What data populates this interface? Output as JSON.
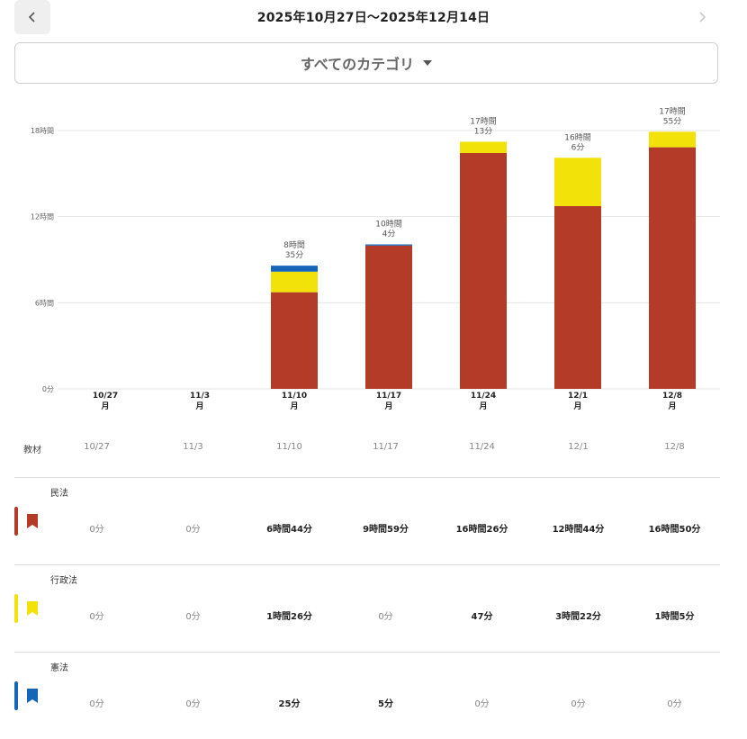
{
  "header": {
    "date_range": "2025年10月27日〜2025年12月14日",
    "prev_icon": "chevron-left-icon",
    "next_icon": "chevron-right-icon"
  },
  "category_select": {
    "label": "すべてのカテゴリ",
    "icon": "caret-down-icon"
  },
  "chart_data": {
    "type": "bar",
    "stacked": true,
    "categories": [
      "10/27",
      "11/3",
      "11/10",
      "11/17",
      "11/24",
      "12/1",
      "12/8"
    ],
    "weekday_labels": [
      "月",
      "月",
      "月",
      "月",
      "月",
      "月",
      "月"
    ],
    "y_ticks": [
      "0分",
      "6時間",
      "12時間",
      "18時間"
    ],
    "ylim": [
      0,
      18
    ],
    "y_unit": "hours",
    "grid": true,
    "series": [
      {
        "name": "民法",
        "color": "#b33b27",
        "values": [
          0,
          0,
          6.733,
          9.983,
          16.433,
          12.733,
          16.833
        ]
      },
      {
        "name": "行政法",
        "color": "#f3e20a",
        "values": [
          0,
          0,
          1.433,
          0,
          0.783,
          3.367,
          1.083
        ]
      },
      {
        "name": "憲法",
        "color": "#1565b8",
        "values": [
          0,
          0,
          0.417,
          0.083,
          0,
          0,
          0
        ]
      }
    ],
    "totals": [
      {
        "l1": "",
        "l2": ""
      },
      {
        "l1": "",
        "l2": ""
      },
      {
        "l1": "8時間",
        "l2": "35分"
      },
      {
        "l1": "10時間",
        "l2": "4分"
      },
      {
        "l1": "17時間",
        "l2": "13分"
      },
      {
        "l1": "16時間",
        "l2": "6分"
      },
      {
        "l1": "17時間",
        "l2": "55分"
      }
    ]
  },
  "table": {
    "header_label": "教材",
    "columns": [
      "10/27",
      "11/3",
      "11/10",
      "11/17",
      "11/24",
      "12/1",
      "12/8"
    ],
    "rows": [
      {
        "name": "民法",
        "color": "#b33b27",
        "icon": "bookmark-icon",
        "values": [
          "0分",
          "0分",
          "6時間44分",
          "9時間59分",
          "16時間26分",
          "12時間44分",
          "16時間50分"
        ]
      },
      {
        "name": "行政法",
        "color": "#f3e20a",
        "icon": "bookmark-icon",
        "values": [
          "0分",
          "0分",
          "1時間26分",
          "0分",
          "47分",
          "3時間22分",
          "1時間5分"
        ]
      },
      {
        "name": "憲法",
        "color": "#1565b8",
        "icon": "bookmark-icon",
        "values": [
          "0分",
          "0分",
          "25分",
          "5分",
          "0分",
          "0分",
          "0分"
        ]
      }
    ]
  }
}
